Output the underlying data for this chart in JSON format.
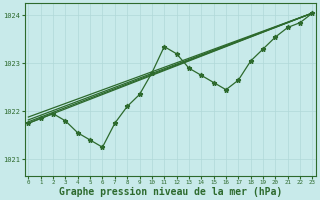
{
  "background_color": "#c8eaea",
  "grid_color": "#b0d8d8",
  "line_color": "#2d6a2d",
  "xlabel": "Graphe pression niveau de la mer (hPa)",
  "xlabel_fontsize": 7.0,
  "xlabel_color": "#2d6a2d",
  "ytick_labels": [
    1021,
    1022,
    1023,
    1024
  ],
  "xtick_labels": [
    0,
    1,
    2,
    3,
    4,
    5,
    6,
    7,
    8,
    9,
    10,
    11,
    12,
    13,
    14,
    15,
    16,
    17,
    18,
    19,
    20,
    21,
    22,
    23
  ],
  "ylim": [
    1020.65,
    1024.25
  ],
  "xlim": [
    -0.3,
    23.3
  ],
  "zigzag_x": [
    0,
    1,
    2,
    3,
    4,
    5,
    6,
    7,
    8,
    9,
    10,
    11,
    12,
    13,
    14,
    15,
    16,
    17,
    18,
    19,
    20,
    21,
    22,
    23
  ],
  "zigzag_y": [
    1021.75,
    1021.85,
    1021.95,
    1021.8,
    1021.55,
    1021.4,
    1021.25,
    1021.75,
    1022.1,
    1022.35,
    1022.8,
    1023.35,
    1023.2,
    1022.9,
    1022.75,
    1022.6,
    1022.45,
    1022.65,
    1023.05,
    1023.3,
    1023.55,
    1023.75,
    1023.85,
    1024.05
  ],
  "line1_x": [
    0,
    23
  ],
  "line1_y": [
    1021.75,
    1024.05
  ],
  "line2_x": [
    0,
    23
  ],
  "line2_y": [
    1021.82,
    1024.05
  ],
  "line3_x": [
    0,
    23
  ],
  "line3_y": [
    1021.88,
    1024.05
  ],
  "line4_x": [
    0,
    23
  ],
  "line4_y": [
    1021.78,
    1024.05
  ]
}
